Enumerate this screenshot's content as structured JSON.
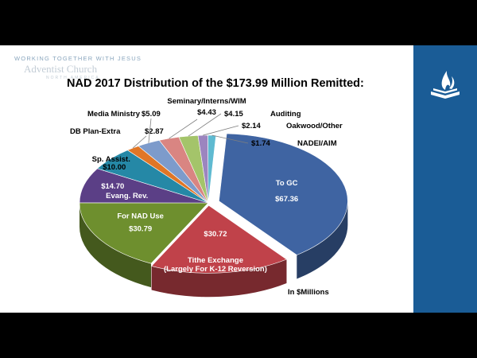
{
  "header": {
    "tagline": "WORKING TOGETHER WITH JESUS",
    "org_name": "Adventist Church",
    "org_sub": "NORTH AMERICA"
  },
  "logo": {
    "icon": "adventist-flame-book-icon"
  },
  "chart_data": {
    "type": "pie",
    "title": "NAD 2017 Distribution of the $173.99 Million Remitted:",
    "unit_note": "In $Millions",
    "total": 173.99,
    "legend": "none",
    "slices": [
      {
        "label": "To GC",
        "value": 67.36,
        "value_text": "$67.36",
        "color": "#3f64a2"
      },
      {
        "label": "Tithe Exchange",
        "sublabel": "(Largely For K-12 Reversion)",
        "value": 30.72,
        "value_text": "$30.72",
        "color": "#c0424a"
      },
      {
        "label": "For NAD Use",
        "value": 30.79,
        "value_text": "$30.79",
        "color": "#6e8f2e"
      },
      {
        "label": "Evang. Rev.",
        "value": 14.7,
        "value_text": "$14.70",
        "color": "#5b3f86"
      },
      {
        "label": "Sp. Assist.",
        "value": 10.0,
        "value_text": "$10.00",
        "color": "#2588a6"
      },
      {
        "label": "DB Plan-Extra",
        "value": 2.87,
        "value_text": "$2.87",
        "color": "#e07626"
      },
      {
        "label": "Media Ministry",
        "value": 5.09,
        "value_text": "$5.09",
        "color": "#7d9bcb"
      },
      {
        "label": "Seminary/Interns/WIM",
        "value": 4.43,
        "value_text": "$4.43",
        "color": "#d98582"
      },
      {
        "label": "Auditing",
        "value": 4.15,
        "value_text": "$4.15",
        "color": "#a4c46a"
      },
      {
        "label": "Oakwood/Other",
        "value": 2.14,
        "value_text": "$2.14",
        "color": "#9c85bf"
      },
      {
        "label": "NADEI/AIM",
        "value": 1.74,
        "value_text": "$1.74",
        "color": "#5fbad1"
      }
    ]
  }
}
